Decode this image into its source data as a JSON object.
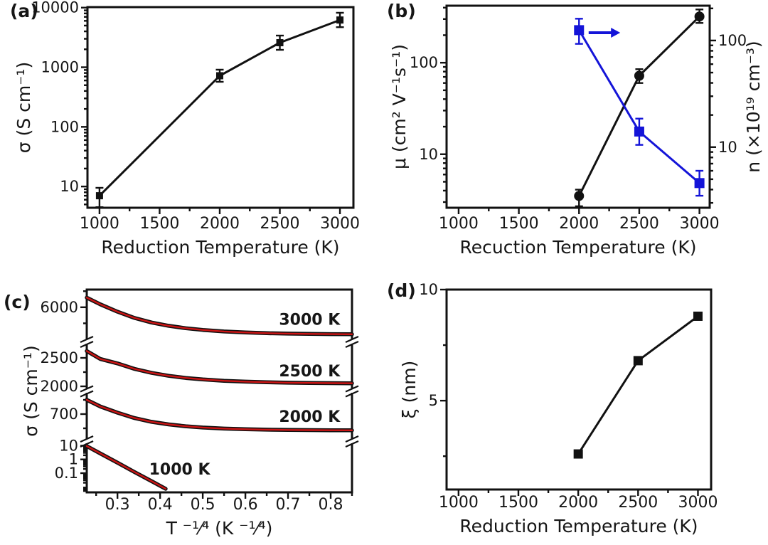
{
  "chart_data": [
    {
      "panel_label": "(a)",
      "type": "line",
      "xlabel": "Reduction Temperature (K)",
      "ylabel": "σ (S cm⁻¹)",
      "x_axis": {
        "scale": "linear",
        "min": 900,
        "max": 3112,
        "major_ticks": [
          1000,
          1500,
          2000,
          2500,
          3000
        ],
        "tick_labels": [
          "1000",
          "1500",
          "2000",
          "2500",
          "3000"
        ],
        "minor_ticks": [
          1250,
          1750,
          2250,
          2750
        ]
      },
      "y_axis": {
        "scale": "log",
        "min": 4.4,
        "max": 10200,
        "major_ticks": [
          10,
          100,
          1000,
          10000
        ],
        "tick_labels": [
          "10",
          "100",
          "1000",
          "10000"
        ]
      },
      "series": [
        {
          "name": "conductivity-vs-reduction-temperature",
          "color": "#111111",
          "marker": "square",
          "marker_size": 10,
          "points": [
            {
              "x": 1000,
              "y": 7,
              "err_lo": 2.5,
              "err_hi": 2.5
            },
            {
              "x": 2000,
              "y": 720,
              "err_lo": 150,
              "err_hi": 190
            },
            {
              "x": 2500,
              "y": 2580,
              "err_lo": 620,
              "err_hi": 820
            },
            {
              "x": 3000,
              "y": 6200,
              "err_lo": 1500,
              "err_hi": 2000
            }
          ]
        }
      ]
    },
    {
      "panel_label": "(b)",
      "type": "line",
      "xlabel": "Recuction Temperature (K)",
      "ylabel": "μ (cm² V⁻¹s⁻¹)",
      "y2label": "n (×10¹⁹ cm⁻³)",
      "x_axis": {
        "scale": "linear",
        "min": 900,
        "max": 3085,
        "major_ticks": [
          1000,
          1500,
          2000,
          2500,
          3000
        ],
        "tick_labels": [
          "1000",
          "1500",
          "2000",
          "2500",
          "3000"
        ],
        "minor_ticks": [
          1250,
          1750,
          2250,
          2750
        ]
      },
      "y_axis": {
        "scale": "log",
        "min": 2.6,
        "max": 420,
        "major_ticks": [
          10,
          100
        ],
        "tick_labels": [
          "10",
          "100"
        ]
      },
      "y2_axis": {
        "scale": "log",
        "min": 2.7,
        "max": 212,
        "major_ticks": [
          10,
          100
        ],
        "tick_labels": [
          "10",
          "100"
        ]
      },
      "series": [
        {
          "name": "mobility",
          "axis": "y",
          "color": "#111111",
          "marker": "circle",
          "marker_size": 14,
          "points": [
            {
              "x": 2000,
              "y": 3.5,
              "err_lo": 0.8,
              "err_hi": 0.6
            },
            {
              "x": 2500,
              "y": 72,
              "err_lo": 12,
              "err_hi": 13
            },
            {
              "x": 3000,
              "y": 320,
              "err_lo": 48,
              "err_hi": 62
            }
          ]
        },
        {
          "name": "carrier-density",
          "axis": "y2",
          "color": "#1414d8",
          "marker": "square",
          "marker_size": 14,
          "points": [
            {
              "x": 2000,
              "y": 125,
              "err_lo": 32,
              "err_hi": 35
            },
            {
              "x": 2500,
              "y": 14,
              "err_lo": 3.5,
              "err_hi": 4.5
            },
            {
              "x": 3000,
              "y": 4.6,
              "err_lo": 1.1,
              "err_hi": 1.4
            }
          ]
        }
      ],
      "annotation": {
        "type": "arrow-right",
        "color": "#1414d8",
        "fx": 0.54,
        "fx2": 0.66,
        "fy": 0.134
      }
    },
    {
      "panel_label": "(c)",
      "type": "line-broken-y",
      "xlabel": "T ⁻¹⁄⁴ (K ⁻¹⁄⁴)",
      "ylabel": "σ (S cm⁻¹)",
      "x_axis": {
        "scale": "linear",
        "min": 0.228,
        "max": 0.85,
        "major_ticks": [
          0.3,
          0.4,
          0.5,
          0.6,
          0.7,
          0.8
        ],
        "tick_labels": [
          "0.3",
          "0.4",
          "0.5",
          "0.6",
          "0.7",
          "0.8"
        ],
        "minor_ticks": [
          0.25,
          0.35,
          0.45,
          0.55,
          0.65,
          0.75,
          0.85
        ]
      },
      "data_color": "#111111",
      "fit_color": "#cc1414",
      "segments": [
        {
          "scale": "linear",
          "min": 4000,
          "max": 7100,
          "major_ticks": [
            6000
          ],
          "tick_labels": [
            "6000"
          ],
          "minor_ticks": [
            5000,
            7000
          ],
          "curve_label": "3000 K",
          "label_fx": 0.84,
          "label_fy": 0.145,
          "points": [
            [
              0.228,
              6600
            ],
            [
              0.26,
              6180
            ],
            [
              0.3,
              5723
            ],
            [
              0.34,
              5333
            ],
            [
              0.38,
              5051
            ],
            [
              0.42,
              4846
            ],
            [
              0.46,
              4697
            ],
            [
              0.5,
              4587
            ],
            [
              0.55,
              4493
            ],
            [
              0.6,
              4429
            ],
            [
              0.65,
              4387
            ],
            [
              0.7,
              4358
            ],
            [
              0.75,
              4339
            ],
            [
              0.8,
              4326
            ],
            [
              0.85,
              4318
            ]
          ]
        },
        {
          "scale": "linear",
          "min": 1950,
          "max": 2750,
          "major_ticks": [
            2500,
            2000
          ],
          "tick_labels": [
            "2500",
            "2000"
          ],
          "minor_ticks": [
            2250
          ],
          "curve_label": "2500 K",
          "label_fx": 0.84,
          "label_fy": 0.4,
          "points": [
            [
              0.228,
              2620
            ],
            [
              0.26,
              2480
            ],
            [
              0.3,
              2403
            ],
            [
              0.34,
              2306
            ],
            [
              0.38,
              2236
            ],
            [
              0.42,
              2185
            ],
            [
              0.46,
              2148
            ],
            [
              0.5,
              2121
            ],
            [
              0.55,
              2098
            ],
            [
              0.6,
              2082
            ],
            [
              0.65,
              2072
            ],
            [
              0.7,
              2064
            ],
            [
              0.75,
              2060
            ],
            [
              0.8,
              2056
            ],
            [
              0.85,
              2054
            ]
          ]
        },
        {
          "scale": "linear",
          "min": 350,
          "max": 1000,
          "major_ticks": [
            700
          ],
          "tick_labels": [
            "700"
          ],
          "minor_ticks": [
            500,
            900
          ],
          "curve_label": "2000 K",
          "label_fx": 0.84,
          "label_fy": 0.625,
          "points": [
            [
              0.228,
              900
            ],
            [
              0.26,
              806
            ],
            [
              0.3,
              720
            ],
            [
              0.34,
              644
            ],
            [
              0.38,
              591
            ],
            [
              0.42,
              555
            ],
            [
              0.46,
              529
            ],
            [
              0.5,
              511
            ],
            [
              0.55,
              496
            ],
            [
              0.6,
              487
            ],
            [
              0.65,
              481
            ],
            [
              0.7,
              477
            ],
            [
              0.75,
              475
            ],
            [
              0.8,
              473
            ],
            [
              0.85,
              472
            ]
          ]
        },
        {
          "scale": "log",
          "min": 0.004,
          "max": 15,
          "major_ticks": [
            10,
            1,
            0.1
          ],
          "tick_labels": [
            "10",
            "1",
            "0.1"
          ],
          "minor_ticks": [],
          "curve_label": "1000 K",
          "label_fx": 0.35,
          "label_fy": 0.885,
          "points": [
            [
              0.228,
              9.3
            ],
            [
              0.26,
              2.7
            ],
            [
              0.3,
              0.58
            ],
            [
              0.34,
              0.12
            ],
            [
              0.38,
              0.026
            ],
            [
              0.413,
              0.0073
            ]
          ]
        }
      ]
    },
    {
      "panel_label": "(d)",
      "type": "line",
      "xlabel": "Reduction Temperature (K)",
      "ylabel": "ξ (nm)",
      "x_axis": {
        "scale": "linear",
        "min": 900,
        "max": 3110,
        "major_ticks": [
          1000,
          1500,
          2000,
          2500,
          3000
        ],
        "tick_labels": [
          "1000",
          "1500",
          "2000",
          "2500",
          "3000"
        ],
        "minor_ticks": [
          1250,
          1750,
          2250,
          2750
        ]
      },
      "y_axis": {
        "scale": "linear",
        "min": 1,
        "max": 10,
        "major_ticks": [
          5,
          10
        ],
        "tick_labels": [
          "5",
          "10"
        ],
        "minor_ticks": [
          2.5,
          7.5
        ]
      },
      "series": [
        {
          "name": "localization-length",
          "color": "#111111",
          "marker": "square",
          "marker_size": 13,
          "points": [
            {
              "x": 2000,
              "y": 2.6
            },
            {
              "x": 2500,
              "y": 6.8
            },
            {
              "x": 3000,
              "y": 8.8
            }
          ]
        }
      ]
    }
  ],
  "colors": {
    "data_black": "#111111",
    "series_blue": "#1414d8",
    "fit_red": "#cc1414",
    "text": "#161616",
    "background": "#ffffff"
  }
}
